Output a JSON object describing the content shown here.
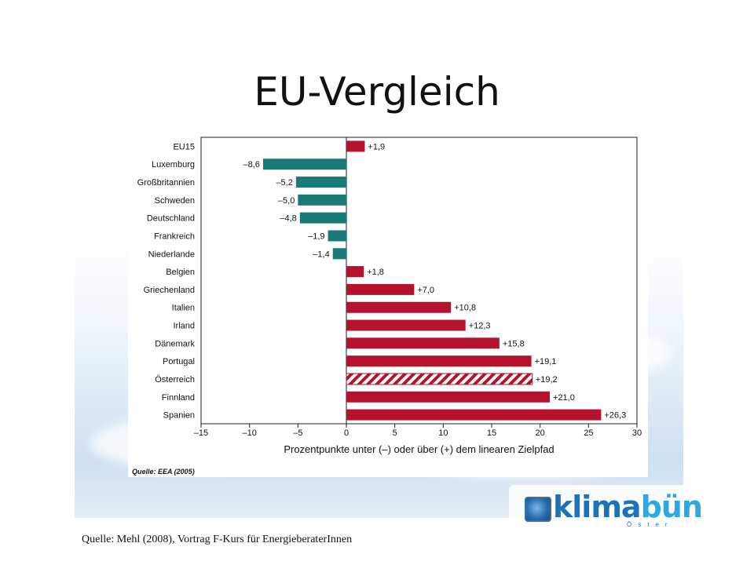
{
  "slide": {
    "title": "EU-Vergleich",
    "source": "Quelle: Mehl (2008), Vortrag F-Kurs für EnergieberaterInnen"
  },
  "logo": {
    "text_a": "klima",
    "text_b": "bün",
    "sub": "Öster"
  },
  "chart_data": {
    "type": "bar",
    "orientation": "horizontal",
    "categories": [
      "EU15",
      "Luxemburg",
      "Großbritannien",
      "Schweden",
      "Deutschland",
      "Frankreich",
      "Niederlande",
      "Belgien",
      "Griechenland",
      "Italien",
      "Irland",
      "Dänemark",
      "Portugal",
      "Österreich",
      "Finnland",
      "Spanien"
    ],
    "values": [
      1.9,
      -8.6,
      -5.2,
      -5.0,
      -4.8,
      -1.9,
      -1.4,
      1.8,
      7.0,
      10.8,
      12.3,
      15.8,
      19.1,
      19.2,
      21.0,
      26.3
    ],
    "value_labels": [
      "+1,9",
      "–8,6",
      "–5,2",
      "–5,0",
      "–4,8",
      "–1,9",
      "–1,4",
      "+1,8",
      "+7,0",
      "+10,8",
      "+12,3",
      "+15,8",
      "+19,1",
      "+19,2",
      "+21,0",
      "+26,3"
    ],
    "xlim": [
      -15,
      30
    ],
    "xticks": [
      -15,
      -10,
      -5,
      0,
      5,
      10,
      15,
      20,
      25,
      30
    ],
    "xtick_labels": [
      "–15",
      "–10",
      "–5",
      "0",
      "5",
      "10",
      "15",
      "20",
      "25",
      "30"
    ],
    "xlabel": "Prozentpunkte unter (–) oder über (+) dem linearen Zielpfad",
    "note": "Quelle: EEA (2005)",
    "colors": {
      "positive": "#b5122e",
      "negative": "#1a7a78",
      "hatched_category": "Österreich"
    },
    "grid": false
  }
}
